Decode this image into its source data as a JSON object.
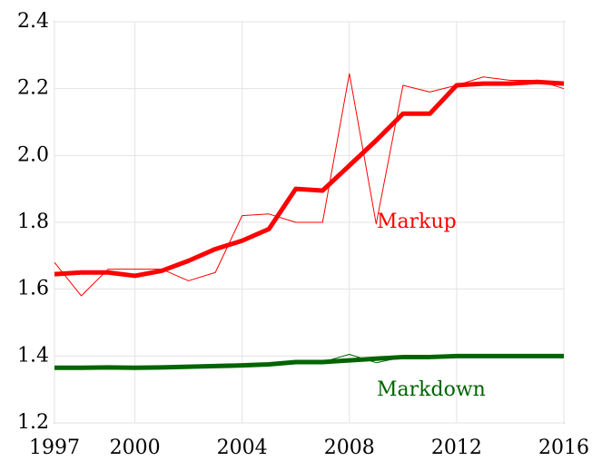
{
  "chart_data": {
    "type": "line",
    "x": [
      1997,
      1998,
      1999,
      2000,
      2001,
      2002,
      2003,
      2004,
      2005,
      2006,
      2007,
      2008,
      2009,
      2010,
      2011,
      2012,
      2013,
      2014,
      2015,
      2016
    ],
    "series": [
      {
        "color": "#ff0000",
        "width": 1,
        "values": [
          1.68,
          1.58,
          1.66,
          1.66,
          1.66,
          1.625,
          1.65,
          1.82,
          1.825,
          1.8,
          1.8,
          2.245,
          1.795,
          2.21,
          2.19,
          2.21,
          2.235,
          2.225,
          2.225,
          2.2
        ]
      },
      {
        "name": "Markup",
        "color": "#ff0000",
        "width": 5,
        "values": [
          1.645,
          1.65,
          1.65,
          1.64,
          1.655,
          1.685,
          1.72,
          1.745,
          1.78,
          1.9,
          1.895,
          1.97,
          2.045,
          2.125,
          2.125,
          2.21,
          2.215,
          2.215,
          2.22,
          2.215
        ]
      },
      {
        "color": "#006400",
        "width": 1,
        "values": [
          1.365,
          1.365,
          1.366,
          1.365,
          1.366,
          1.368,
          1.37,
          1.372,
          1.375,
          1.382,
          1.382,
          1.405,
          1.38,
          1.397,
          1.397,
          1.4,
          1.4,
          1.4,
          1.4,
          1.4
        ]
      },
      {
        "name": "Markdown",
        "color": "#006400",
        "width": 5,
        "values": [
          1.365,
          1.365,
          1.366,
          1.365,
          1.366,
          1.368,
          1.37,
          1.372,
          1.375,
          1.382,
          1.382,
          1.387,
          1.392,
          1.397,
          1.397,
          1.4,
          1.4,
          1.4,
          1.4,
          1.4
        ]
      }
    ],
    "xlim": [
      1997,
      2016
    ],
    "xticks": [
      1997,
      2000,
      2004,
      2008,
      2012,
      2016
    ],
    "ylim": [
      1.2,
      2.4
    ],
    "yticks": [
      {
        "value": 1.2,
        "label": "1.2"
      },
      {
        "value": 1.4,
        "label": "1.4"
      },
      {
        "value": 1.6,
        "label": "1.6"
      },
      {
        "value": 1.8,
        "label": "1.8"
      },
      {
        "value": 2.0,
        "label": "2.0"
      },
      {
        "value": 2.2,
        "label": "2.2"
      },
      {
        "value": 2.4,
        "label": "2.4"
      }
    ],
    "grid": true
  }
}
